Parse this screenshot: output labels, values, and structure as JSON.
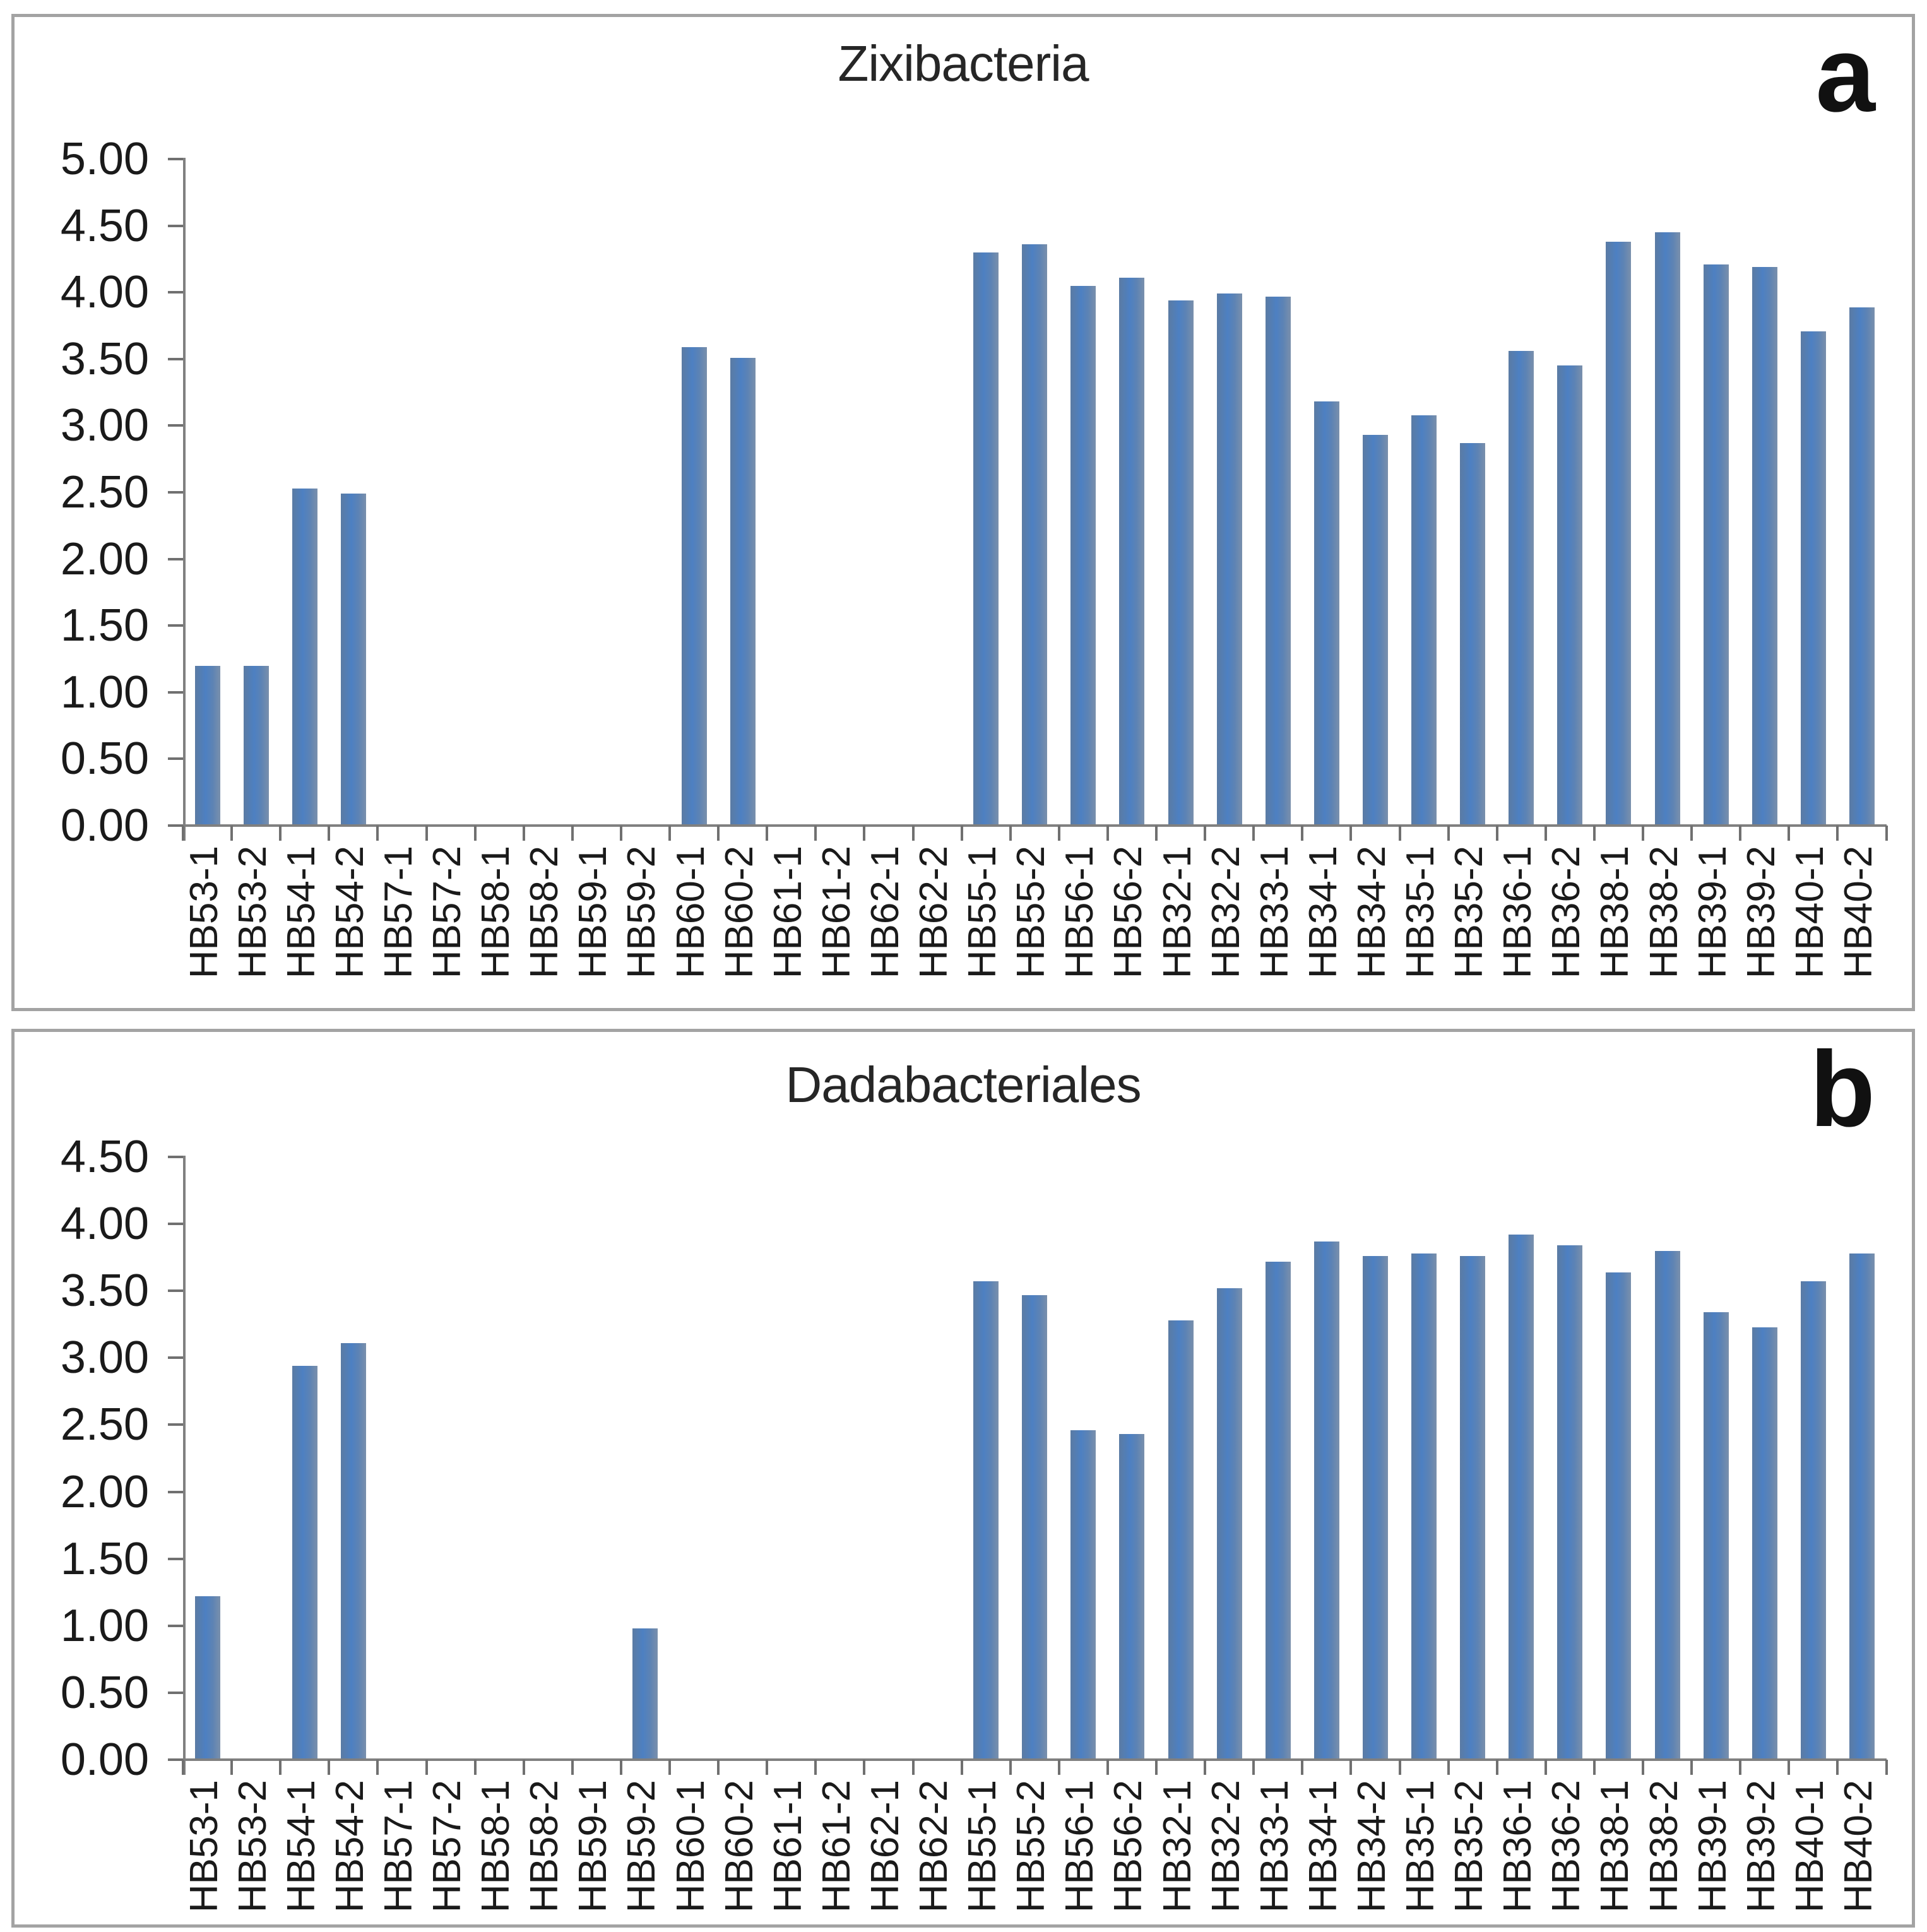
{
  "figure": {
    "background": "#ffffff",
    "bar_color": "#4f81bd",
    "axis_color": "#808080",
    "text_color": "#1a1a1a"
  },
  "chart_data": [
    {
      "type": "bar",
      "panel_label": "a",
      "title": "Zixibacteria",
      "categories": [
        "HB53-1",
        "HB53-2",
        "HB54-1",
        "HB54-2",
        "HB57-1",
        "HB57-2",
        "HB58-1",
        "HB58-2",
        "HB59-1",
        "HB59-2",
        "HB60-1",
        "HB60-2",
        "HB61-1",
        "HB61-2",
        "HB62-1",
        "HB62-2",
        "HB55-1",
        "HB55-2",
        "HB56-1",
        "HB56-2",
        "HB32-1",
        "HB32-2",
        "HB33-1",
        "HB34-1",
        "HB34-2",
        "HB35-1",
        "HB35-2",
        "HB36-1",
        "HB36-2",
        "HB38-1",
        "HB38-2",
        "HB39-1",
        "HB39-2",
        "HB40-1",
        "HB40-2"
      ],
      "values": [
        1.19,
        1.19,
        2.52,
        2.48,
        0,
        0,
        0,
        0,
        0,
        0,
        3.58,
        3.5,
        0,
        0,
        0,
        0,
        4.29,
        4.35,
        4.04,
        4.1,
        3.93,
        3.98,
        3.96,
        3.17,
        2.92,
        3.07,
        2.86,
        3.55,
        3.44,
        4.37,
        4.44,
        4.2,
        4.18,
        3.7,
        3.88
      ],
      "ylim": [
        0,
        5.0
      ],
      "ytick_step": 0.5,
      "ytick_labels": [
        "5.00",
        "4.50",
        "4.00",
        "3.50",
        "3.00",
        "2.50",
        "2.00",
        "1.50",
        "1.00",
        "0.50",
        "0.00"
      ],
      "xlabel": "",
      "ylabel": "",
      "grid": false,
      "legend": "none"
    },
    {
      "type": "bar",
      "panel_label": "b",
      "title": "Dadabacteriales",
      "categories": [
        "HB53-1",
        "HB53-2",
        "HB54-1",
        "HB54-2",
        "HB57-1",
        "HB57-2",
        "HB58-1",
        "HB58-2",
        "HB59-1",
        "HB59-2",
        "HB60-1",
        "HB60-2",
        "HB61-1",
        "HB61-2",
        "HB62-1",
        "HB62-2",
        "HB55-1",
        "HB55-2",
        "HB56-1",
        "HB56-2",
        "HB32-1",
        "HB32-2",
        "HB33-1",
        "HB34-1",
        "HB34-2",
        "HB35-1",
        "HB35-2",
        "HB36-1",
        "HB36-2",
        "HB38-1",
        "HB38-2",
        "HB39-1",
        "HB39-2",
        "HB40-1",
        "HB40-2"
      ],
      "values": [
        1.21,
        0,
        2.93,
        3.1,
        0,
        0,
        0,
        0,
        0,
        0.97,
        0,
        0,
        0,
        0,
        0,
        0,
        3.56,
        3.46,
        2.45,
        2.42,
        3.27,
        3.51,
        3.71,
        3.86,
        3.75,
        3.77,
        3.75,
        3.91,
        3.83,
        3.63,
        3.79,
        3.33,
        3.22,
        3.56,
        3.77
      ],
      "ylim": [
        0,
        4.5
      ],
      "ytick_step": 0.5,
      "ytick_labels": [
        "4.50",
        "4.00",
        "3.50",
        "3.00",
        "2.50",
        "2.00",
        "1.50",
        "1.00",
        "0.50",
        "0.00"
      ],
      "xlabel": "",
      "ylabel": "",
      "grid": false,
      "legend": "none"
    }
  ]
}
